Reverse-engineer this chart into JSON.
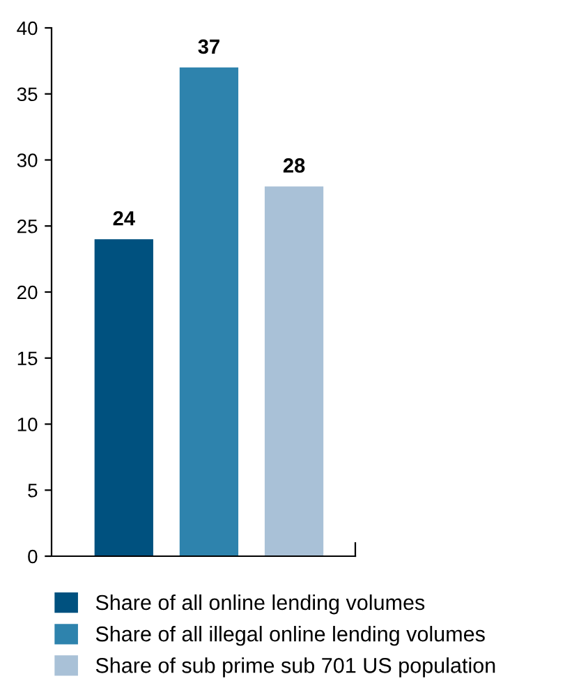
{
  "chart_data": {
    "type": "bar",
    "categories": [
      null,
      null,
      null
    ],
    "series": [
      {
        "name": "Share of all online lending volumes",
        "color": "#00517f",
        "values": [
          24,
          null,
          null
        ]
      },
      {
        "name": "Share of all illegal online lending volumes",
        "color": "#2e83ad",
        "values": [
          null,
          37,
          null
        ]
      },
      {
        "name": "Share of sub prime sub 701 US population",
        "color": "#a9c1d7",
        "values": [
          null,
          null,
          28
        ]
      }
    ],
    "ylim": [
      0,
      40
    ],
    "yticks": [
      0,
      5,
      10,
      15,
      20,
      25,
      30,
      35,
      40
    ],
    "data_labels": true,
    "grid": false,
    "legend": "bottom"
  }
}
